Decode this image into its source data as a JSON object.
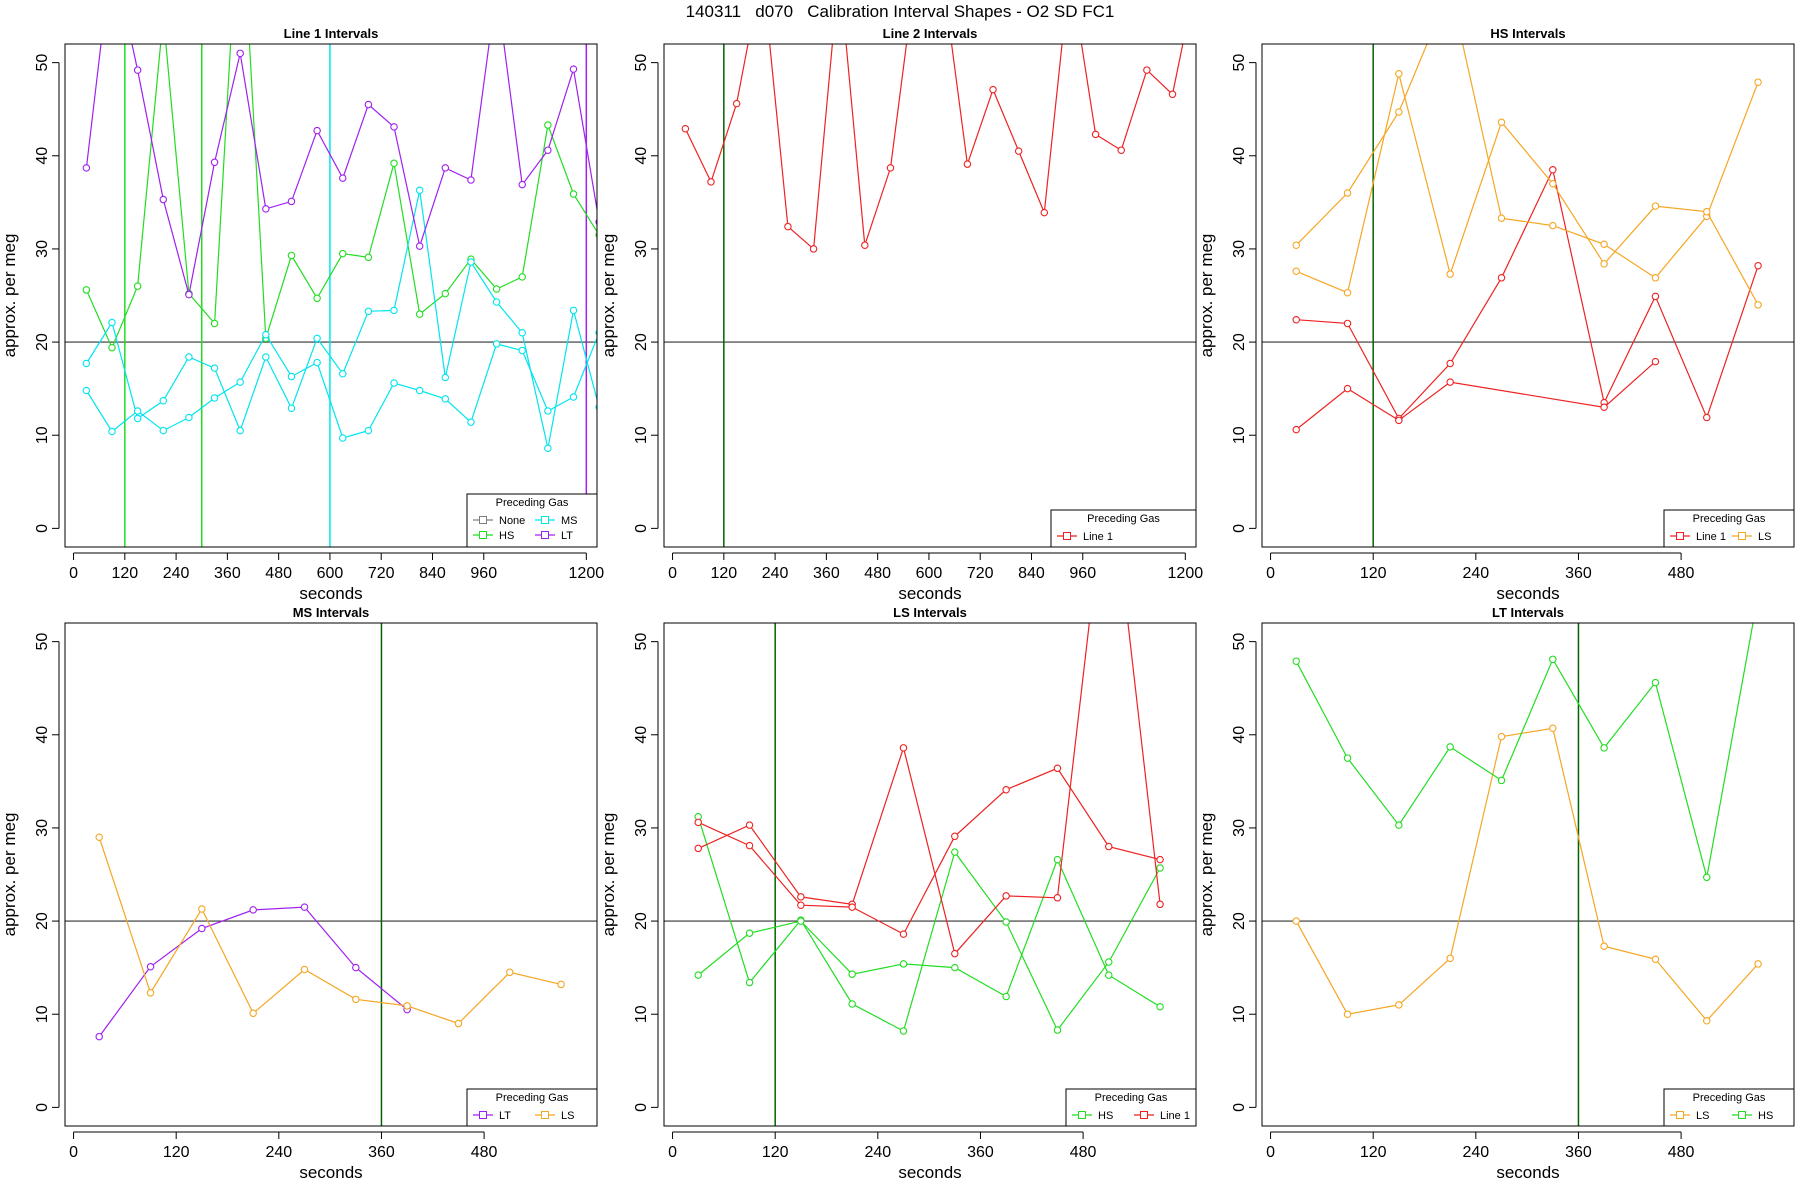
{
  "page": {
    "title": "140311   d070   Calibration Interval Shapes - O2 SD FC1"
  },
  "colors": {
    "None": "#7f7f7f",
    "MS": "#00e5ee",
    "HS": "#22dd22",
    "LT": "#a020f0",
    "Line 1": "#ee2222",
    "LS": "#f5a623",
    "reference_line": "#333333",
    "green_vline": "#006400"
  },
  "chart_data": [
    {
      "type": "line",
      "title": "Line 1 Intervals",
      "xlabel": "seconds",
      "ylabel": "approx. per meg",
      "xlim": [
        -20,
        1225
      ],
      "ylim": [
        -2,
        52
      ],
      "xticks": [
        0,
        120,
        240,
        360,
        480,
        600,
        720,
        840,
        960,
        1200
      ],
      "yticks": [
        0,
        10,
        20,
        30,
        40,
        50
      ],
      "hline": 20,
      "vlines": [
        {
          "x": 120,
          "color": "HS"
        },
        {
          "x": 300,
          "color": "HS"
        },
        {
          "x": 600,
          "color": "MS"
        },
        {
          "x": 1200,
          "color": "LT"
        }
      ],
      "legend": {
        "title": "Preceding Gas",
        "position": "bottom-right",
        "entries": [
          "None",
          "HS",
          "MS",
          "LT"
        ]
      },
      "series": [
        {
          "name": "None",
          "x": [
            270
          ],
          "y": [
            25.2
          ]
        },
        {
          "name": "HS",
          "x": [
            30,
            90,
            150,
            210,
            270,
            330,
            390,
            450,
            510,
            570,
            630,
            690,
            750,
            810,
            870,
            930,
            990,
            1050,
            1110,
            1170,
            1230
          ],
          "y": [
            25.6,
            19.4,
            26.0,
            55,
            25.2,
            22.0,
            70,
            20.4,
            29.3,
            24.7,
            29.5,
            29.1,
            39.2,
            23.0,
            25.2,
            28.9,
            25.7,
            27.0,
            43.3,
            35.9,
            31.5
          ]
        },
        {
          "name": "MS",
          "x": [
            30,
            90,
            150,
            210,
            270,
            330,
            390,
            450,
            510,
            570,
            630,
            690,
            750,
            810,
            870,
            930,
            990,
            1050,
            1110,
            1170,
            1230
          ],
          "y": [
            17.7,
            22.1,
            11.8,
            13.7,
            18.4,
            17.2,
            10.5,
            18.4,
            12.9,
            20.4,
            16.6,
            23.3,
            23.4,
            36.3,
            16.2,
            28.6,
            24.3,
            21.0,
            8.6,
            23.4,
            13.0
          ]
        },
        {
          "name": "MS",
          "x": [
            30,
            90,
            150,
            210,
            270,
            330,
            390,
            450,
            510,
            570,
            630,
            690,
            750,
            810,
            870,
            930,
            990,
            1050,
            1110,
            1170,
            1230
          ],
          "y": [
            14.8,
            10.4,
            12.6,
            10.5,
            11.9,
            14.0,
            15.7,
            20.8,
            16.3,
            17.8,
            9.7,
            10.5,
            15.6,
            14.8,
            13.9,
            11.4,
            19.8,
            19.1,
            12.6,
            14.1,
            21.0
          ]
        },
        {
          "name": "LT",
          "x": [
            30,
            90,
            150,
            210,
            270,
            330,
            390,
            450,
            510,
            570,
            630,
            690,
            750,
            810,
            870,
            930,
            990,
            1050,
            1110,
            1170,
            1230
          ],
          "y": [
            38.7,
            62,
            49.2,
            35.3,
            25.1,
            39.3,
            51.0,
            34.3,
            35.1,
            42.7,
            37.6,
            45.5,
            43.1,
            30.3,
            38.7,
            37.4,
            58,
            36.9,
            40.6,
            49.3,
            32.9
          ]
        }
      ]
    },
    {
      "type": "line",
      "title": "Line 2 Intervals",
      "xlabel": "seconds",
      "ylabel": "approx. per meg",
      "xlim": [
        -20,
        1225
      ],
      "ylim": [
        -2,
        52
      ],
      "xticks": [
        0,
        120,
        240,
        360,
        480,
        600,
        720,
        840,
        960,
        1200
      ],
      "yticks": [
        0,
        10,
        20,
        30,
        40,
        50
      ],
      "hline": 20,
      "vlines": [
        {
          "x": 120,
          "color": "green_vline"
        }
      ],
      "legend": {
        "title": "Preceding Gas",
        "position": "bottom-right",
        "entries": [
          "Line 1"
        ]
      },
      "series": [
        {
          "name": "Line 1",
          "x": [
            30,
            90,
            150,
            210,
            270,
            330,
            390,
            450,
            510,
            570,
            630,
            690,
            750,
            810,
            870,
            930,
            990,
            1050,
            1110,
            1170,
            1230
          ],
          "y": [
            42.9,
            37.2,
            45.6,
            60,
            32.4,
            30.0,
            60,
            30.4,
            38.7,
            60,
            60,
            39.1,
            47.1,
            40.5,
            33.9,
            60,
            42.3,
            40.6,
            49.2,
            46.6,
            60
          ]
        }
      ]
    },
    {
      "type": "line",
      "title": "HS Intervals",
      "xlabel": "seconds",
      "ylabel": "approx. per meg",
      "xlim": [
        -10,
        612
      ],
      "ylim": [
        -2,
        52
      ],
      "xticks": [
        0,
        120,
        240,
        360,
        480
      ],
      "yticks": [
        0,
        10,
        20,
        30,
        40,
        50
      ],
      "hline": 20,
      "vlines": [
        {
          "x": 120,
          "color": "green_vline"
        }
      ],
      "legend": {
        "title": "Preceding Gas",
        "position": "bottom-right",
        "entries": [
          "Line 1",
          "LS"
        ]
      },
      "series": [
        {
          "name": "Line 1",
          "x": [
            30,
            90,
            150,
            210,
            270,
            330,
            390,
            450,
            510,
            570
          ],
          "y": [
            22.4,
            22.0,
            11.8,
            17.7,
            26.9,
            38.5,
            13.5,
            24.9,
            11.9,
            28.2
          ]
        },
        {
          "name": "Line 1",
          "x": [
            30,
            90,
            150,
            210,
            390,
            450
          ],
          "y": [
            10.6,
            15.0,
            11.6,
            15.7,
            13.0,
            17.9
          ]
        },
        {
          "name": "LS",
          "x": [
            30,
            90,
            150,
            210,
            270,
            330,
            390,
            450,
            510,
            570
          ],
          "y": [
            30.4,
            36.0,
            44.7,
            58,
            33.3,
            32.5,
            30.5,
            26.9,
            33.5,
            47.9
          ]
        },
        {
          "name": "LS",
          "x": [
            30,
            90,
            150,
            210,
            270,
            330,
            390,
            450,
            510,
            570
          ],
          "y": [
            27.6,
            25.3,
            48.8,
            27.3,
            43.6,
            37.0,
            28.4,
            34.6,
            34.0,
            24.0
          ]
        }
      ]
    },
    {
      "type": "line",
      "title": "MS Intervals",
      "xlabel": "seconds",
      "ylabel": "approx. per meg",
      "xlim": [
        -10,
        612
      ],
      "ylim": [
        -2,
        52
      ],
      "xticks": [
        0,
        120,
        240,
        360,
        480
      ],
      "yticks": [
        0,
        10,
        20,
        30,
        40,
        50
      ],
      "hline": 20,
      "vlines": [
        {
          "x": 360,
          "color": "green_vline"
        }
      ],
      "legend": {
        "title": "Preceding Gas",
        "position": "bottom-right",
        "entries": [
          "LT",
          "LS"
        ]
      },
      "series": [
        {
          "name": "LT",
          "x": [
            30,
            90,
            150,
            210,
            270,
            330,
            390
          ],
          "y": [
            7.6,
            15.1,
            19.2,
            21.2,
            21.5,
            15.0,
            10.5
          ]
        },
        {
          "name": "LS",
          "x": [
            30,
            90,
            150,
            210,
            270,
            330,
            390,
            450,
            510,
            570
          ],
          "y": [
            29.0,
            12.3,
            21.3,
            10.1,
            14.8,
            11.6,
            10.9,
            9.0,
            14.5,
            13.2
          ]
        }
      ]
    },
    {
      "type": "line",
      "title": "LS Intervals",
      "xlabel": "seconds",
      "ylabel": "approx. per meg",
      "xlim": [
        -10,
        612
      ],
      "ylim": [
        -2,
        52
      ],
      "xticks": [
        0,
        120,
        240,
        360,
        480
      ],
      "yticks": [
        0,
        10,
        20,
        30,
        40,
        50
      ],
      "hline": 20,
      "vlines": [
        {
          "x": 120,
          "color": "green_vline"
        }
      ],
      "legend": {
        "title": "Preceding Gas",
        "position": "bottom-right",
        "entries": [
          "HS",
          "Line 1"
        ]
      },
      "series": [
        {
          "name": "HS",
          "x": [
            30,
            90,
            150,
            210,
            270,
            330,
            390,
            450,
            510,
            570
          ],
          "y": [
            31.2,
            13.4,
            20.1,
            11.1,
            8.2,
            27.4,
            19.9,
            8.3,
            15.6,
            25.7
          ]
        },
        {
          "name": "HS",
          "x": [
            30,
            90,
            150,
            210,
            270,
            330,
            390,
            450,
            510,
            570
          ],
          "y": [
            14.2,
            18.7,
            20.0,
            14.3,
            15.4,
            15.0,
            11.9,
            26.6,
            14.2,
            10.8
          ]
        },
        {
          "name": "Line 1",
          "x": [
            30,
            90,
            150,
            210,
            270,
            330,
            390,
            450,
            510,
            570
          ],
          "y": [
            27.8,
            30.3,
            22.6,
            21.8,
            38.6,
            16.5,
            22.7,
            22.5,
            70,
            21.8
          ]
        },
        {
          "name": "Line 1",
          "x": [
            30,
            90,
            150,
            210,
            270,
            330,
            390,
            450,
            510,
            570
          ],
          "y": [
            30.6,
            28.1,
            21.7,
            21.5,
            18.6,
            29.1,
            34.1,
            36.4,
            28.0,
            26.6
          ]
        }
      ]
    },
    {
      "type": "line",
      "title": "LT Intervals",
      "xlabel": "seconds",
      "ylabel": "approx. per meg",
      "xlim": [
        -10,
        612
      ],
      "ylim": [
        -2,
        52
      ],
      "xticks": [
        0,
        120,
        240,
        360,
        480
      ],
      "yticks": [
        0,
        10,
        20,
        30,
        40,
        50
      ],
      "hline": 20,
      "vlines": [
        {
          "x": 360,
          "color": "green_vline"
        }
      ],
      "legend": {
        "title": "Preceding Gas",
        "position": "bottom-right",
        "entries": [
          "LS",
          "HS"
        ]
      },
      "series": [
        {
          "name": "LS",
          "x": [
            30,
            90,
            150,
            210,
            270,
            330,
            390,
            450,
            510,
            570
          ],
          "y": [
            20.0,
            10.0,
            11.0,
            16.0,
            39.8,
            40.7,
            17.3,
            15.9,
            9.3,
            15.4
          ]
        },
        {
          "name": "HS",
          "x": [
            30,
            90,
            150,
            210,
            270,
            330,
            390,
            450,
            510,
            570
          ],
          "y": [
            47.9,
            37.5,
            30.3,
            38.7,
            35.1,
            48.1,
            38.6,
            45.6,
            24.7,
            55
          ]
        }
      ]
    }
  ]
}
